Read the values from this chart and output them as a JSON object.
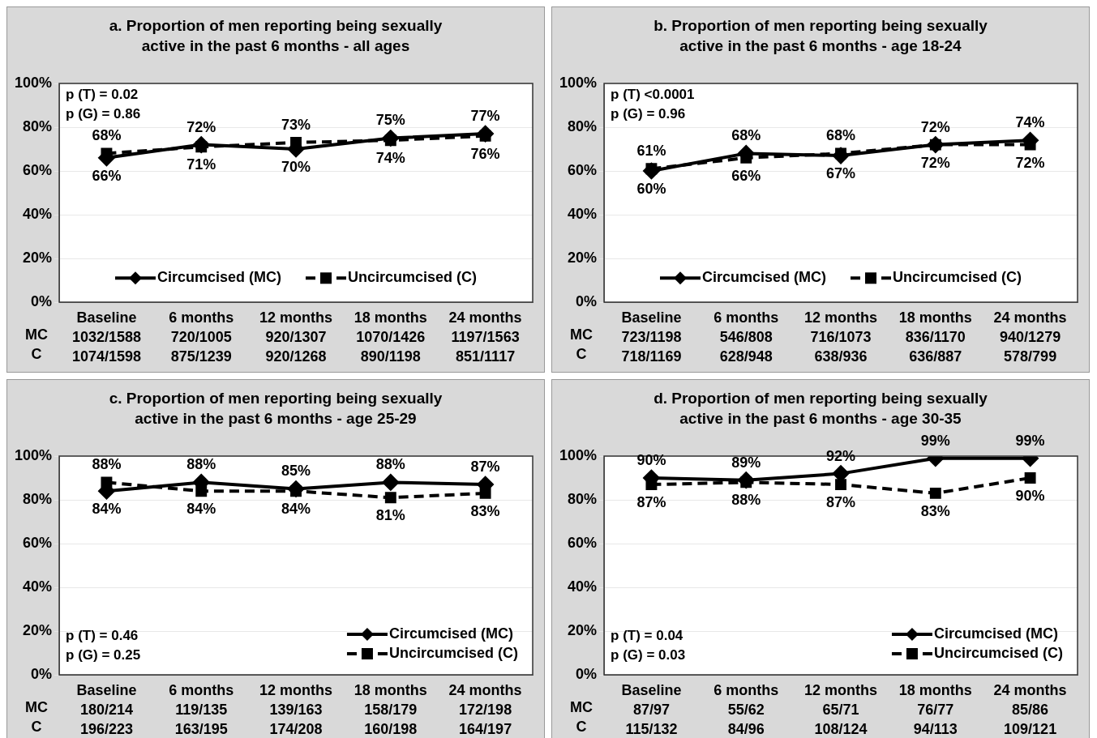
{
  "chart_data": [
    {
      "type": "line",
      "title": "a. Proportion of men reporting being sexually active in the past 6 months - all ages",
      "categories": [
        "Baseline\n1032/1588\n1074/1598",
        "6 months\n720/1005\n875/1239",
        "12 months\n920/1307\n920/1268",
        "18 months\n1070/1426\n890/1198",
        "24 months\n1197/1563\n851/1117"
      ],
      "series": [
        {
          "name": "Circumcised (MC)",
          "color": "#000000",
          "marker": "diamond",
          "line_style": "solid",
          "values": [
            66,
            72,
            70,
            75,
            77
          ],
          "value_labels": [
            "66%",
            "72%",
            "70%",
            "75%",
            "77%"
          ]
        },
        {
          "name": "Uncircumcised (C)",
          "color": "#000000",
          "marker": "square",
          "line_style": "dashed",
          "values": [
            68,
            71,
            73,
            74,
            76
          ],
          "value_labels": [
            "68%",
            "71%",
            "73%",
            "74%",
            "76%"
          ]
        }
      ],
      "ylim": [
        0,
        100
      ],
      "yticks": [
        {
          "value": 0,
          "label": "0%"
        },
        {
          "value": 20,
          "label": "20%"
        },
        {
          "value": 40,
          "label": "40%"
        },
        {
          "value": 60,
          "label": "60%"
        },
        {
          "value": 80,
          "label": "80%"
        },
        {
          "value": 100,
          "label": "100%"
        }
      ],
      "grid": "y",
      "legend": "bottom",
      "annotations": [
        "p (T) = 0.02",
        "p (G) = 0.86",
        "MC",
        "C"
      ]
    },
    {
      "type": "line",
      "title": "b. Proportion of men reporting being sexually active in the past 6 months - age 18-24",
      "categories": [
        "Baseline\n723/1198\n718/1169",
        "6 months\n546/808\n628/948",
        "12 months\n716/1073\n638/936",
        "18 months\n836/1170\n636/887",
        "24 months\n940/1279\n578/799"
      ],
      "series": [
        {
          "name": "Circumcised (MC)",
          "color": "#000000",
          "marker": "diamond",
          "line_style": "solid",
          "values": [
            60,
            68,
            67,
            72,
            74
          ],
          "value_labels": [
            "60%",
            "68%",
            "67%",
            "72%",
            "74%"
          ]
        },
        {
          "name": "Uncircumcised (C)",
          "color": "#000000",
          "marker": "square",
          "line_style": "dashed",
          "values": [
            61,
            66,
            68,
            72,
            72
          ],
          "value_labels": [
            "61%",
            "66%",
            "68%",
            "72%",
            "72%"
          ]
        }
      ],
      "ylim": [
        0,
        100
      ],
      "yticks": [
        {
          "value": 0,
          "label": "0%"
        },
        {
          "value": 20,
          "label": "20%"
        },
        {
          "value": 40,
          "label": "40%"
        },
        {
          "value": 60,
          "label": "60%"
        },
        {
          "value": 80,
          "label": "80%"
        },
        {
          "value": 100,
          "label": "100%"
        }
      ],
      "grid": "y",
      "legend": "bottom",
      "annotations": [
        "p (T) <0.0001",
        "p (G) = 0.96",
        "MC",
        "C"
      ]
    },
    {
      "type": "line",
      "title": "c. Proportion of men reporting being sexually active in the past 6 months - age 25-29",
      "categories": [
        "Baseline\n180/214\n196/223",
        "6 months\n119/135\n163/195",
        "12 months\n139/163\n174/208",
        "18 months\n158/179\n160/198",
        "24 months\n172/198\n164/197"
      ],
      "series": [
        {
          "name": "Circumcised (MC)",
          "color": "#000000",
          "marker": "diamond",
          "line_style": "solid",
          "values": [
            84,
            88,
            85,
            88,
            87
          ],
          "value_labels": [
            "84%",
            "88%",
            "85%",
            "88%",
            "87%"
          ]
        },
        {
          "name": "Uncircumcised (C)",
          "color": "#000000",
          "marker": "square",
          "line_style": "dashed",
          "values": [
            88,
            84,
            84,
            81,
            83
          ],
          "value_labels": [
            "88%",
            "84%",
            "84%",
            "81%",
            "83%"
          ]
        }
      ],
      "ylim": [
        0,
        100
      ],
      "yticks": [
        {
          "value": 0,
          "label": "0%"
        },
        {
          "value": 20,
          "label": "20%"
        },
        {
          "value": 40,
          "label": "40%"
        },
        {
          "value": 60,
          "label": "60%"
        },
        {
          "value": 80,
          "label": "80%"
        },
        {
          "value": 100,
          "label": "100%"
        }
      ],
      "grid": "y",
      "legend": "bottom right",
      "annotations": [
        "p (T) = 0.46",
        "p (G) = 0.25",
        "MC",
        "C"
      ]
    },
    {
      "type": "line",
      "title": "d. Proportion of men reporting being sexually active in the past 6 months - age 30-35",
      "categories": [
        "Baseline\n87/97\n115/132",
        "6 months\n55/62\n84/96",
        "12 months\n65/71\n108/124",
        "18 months\n76/77\n94/113",
        "24 months\n85/86\n109/121"
      ],
      "series": [
        {
          "name": "Circumcised (MC)",
          "color": "#000000",
          "marker": "diamond",
          "line_style": "solid",
          "values": [
            90,
            89,
            92,
            99,
            99
          ],
          "value_labels": [
            "90%",
            "89%",
            "92%",
            "99%",
            "99%"
          ]
        },
        {
          "name": "Uncircumcised (C)",
          "color": "#000000",
          "marker": "square",
          "line_style": "dashed",
          "values": [
            87,
            88,
            87,
            83,
            90
          ],
          "value_labels": [
            "87%",
            "88%",
            "87%",
            "83%",
            "90%"
          ]
        }
      ],
      "ylim": [
        0,
        100
      ],
      "yticks": [
        {
          "value": 0,
          "label": "0%"
        },
        {
          "value": 20,
          "label": "20%"
        },
        {
          "value": 40,
          "label": "40%"
        },
        {
          "value": 60,
          "label": "60%"
        },
        {
          "value": 80,
          "label": "80%"
        },
        {
          "value": 100,
          "label": "100%"
        }
      ],
      "grid": "y",
      "legend": "bottom right",
      "annotations": [
        "p (T) = 0.04",
        "p (G) = 0.03",
        "MC",
        "C"
      ]
    }
  ]
}
